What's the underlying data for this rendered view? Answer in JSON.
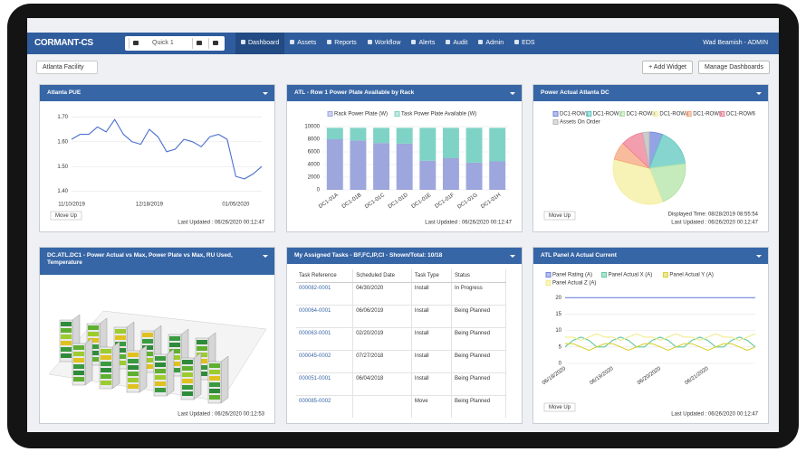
{
  "nav": {
    "brand": "CORMANT-CS",
    "search": "Quick 1",
    "menu": [
      "Dashboard",
      "Assets",
      "Reports",
      "Workflow",
      "Alerts",
      "Audit",
      "Admin",
      "EDS"
    ],
    "user": "Wad Beamish - ADMIN"
  },
  "toolbar": {
    "facility": "Atlanta Facility",
    "buttons": [
      "+ Add Widget",
      "Manage Dashboards"
    ]
  },
  "widgets": [
    {
      "title": "Atlanta PUE",
      "footer": {
        "move_up": "Move Up",
        "updated": "Last Updated : 06/26/2020 00:12:47"
      },
      "chart": {
        "type": "line",
        "categories": [
          "11/10/2019",
          null,
          null,
          null,
          null,
          null,
          null,
          null,
          null,
          "12/18/2019",
          null,
          null,
          null,
          null,
          null,
          null,
          null,
          null,
          null,
          "01/05/2020",
          null,
          null,
          null
        ],
        "series": [
          {
            "color": "#4a6fd0",
            "values": [
              1.61,
              1.63,
              1.63,
              1.66,
              1.64,
              1.69,
              1.63,
              1.6,
              1.59,
              1.65,
              1.62,
              1.56,
              1.57,
              1.61,
              1.6,
              1.58,
              1.62,
              1.63,
              1.61,
              1.46,
              1.45,
              1.47,
              1.5
            ]
          }
        ],
        "ylim": [
          1.38,
          1.72
        ],
        "yticks": [
          {
            "value": 1.4,
            "label": "1.40"
          },
          {
            "value": 1.5,
            "label": "1.50"
          },
          {
            "value": 1.6,
            "label": "1.60"
          },
          {
            "value": 1.7,
            "label": "1.70"
          }
        ]
      }
    },
    {
      "title": "ATL - Row 1 Power Plate Available by Rack",
      "footer": {
        "updated": "Last Updated : 06/26/2020 00:12:47"
      },
      "chart": {
        "type": "bar",
        "categories": [
          "DC1-01A",
          "DC1-01B",
          "DC1-01C",
          "DC1-01D",
          "DC1-01E",
          "DC1-01F",
          "DC1-01G",
          "DC1-01H"
        ],
        "series": [
          {
            "name": "Rack Power Plate (W)",
            "color": "#9ea6de",
            "values": [
              8000,
              7800,
              7400,
              7300,
              4600,
              5000,
              4300,
              4500
            ]
          },
          {
            "name": "Task Power Plate Available (W)",
            "color": "#7fd3c6",
            "values": [
              1800,
              2000,
              2400,
              2500,
              5200,
              4800,
              5500,
              5300
            ]
          }
        ],
        "ylim": [
          0,
          10000
        ],
        "yticks": [
          0,
          2000,
          4000,
          6000,
          8000,
          10000
        ]
      }
    },
    {
      "title": "Power Actual Atlanta DC",
      "footer": {
        "move_up": "Move Up",
        "displayed": "Displayed Time: 08/28/2019 08:55:54",
        "updated": "Last Updated : 06/26/2020 00:12:47"
      },
      "chart": {
        "type": "pie",
        "categories": [
          "DC1-ROW1",
          "DC1-ROW2",
          "DC1-ROW3",
          "DC1-ROW4",
          "DC1-ROW5",
          "DC1-ROW6",
          "Assets On Order"
        ],
        "values": [
          6,
          17,
          21,
          35,
          8,
          10,
          3
        ],
        "colors": [
          "#6f84dc",
          "#5ec8bf",
          "#b2e3a6",
          "#f4ee9c",
          "#f5a57c",
          "#ef7d93",
          "#b9b9b9"
        ]
      }
    },
    {
      "title": "DC.ATL.DC1 - Power Actual vs Max, Power Plate vs Max, RU Used, Temperature",
      "footer": {
        "updated": "Last Updated : 06/26/2020 00:12:53"
      },
      "chart": {
        "type": "image"
      }
    },
    {
      "title": "My Assigned Tasks - BF,FC,IP,CI - Shown/Total: 10/18",
      "table": {
        "columns": [
          "Task Reference",
          "Scheduled Date",
          "Task Type",
          "Status"
        ],
        "rows": [
          [
            "000082-0001",
            "04/30/2020",
            "Install",
            "In Progress"
          ],
          [
            "000064-0001",
            "06/06/2019",
            "Install",
            "Being Planned"
          ],
          [
            "000063-0001",
            "02/20/2019",
            "Install",
            "Being Planned"
          ],
          [
            "000045-0002",
            "07/27/2018",
            "Install",
            "Being Planned"
          ],
          [
            "000051-0001",
            "06/04/2018",
            "Install",
            "Being Planned"
          ],
          [
            "000085-0002",
            null,
            "Move",
            "Being Planned"
          ]
        ]
      }
    },
    {
      "title": "ATL Panel A Actual Current",
      "footer": {
        "move_up": "Move Up",
        "updated": "Last Updated : 06/26/2020 00:12:47"
      },
      "chart": {
        "type": "line",
        "categories": [
          "06/18/2020",
          null,
          null,
          null,
          null,
          null,
          "06/19/2020",
          null,
          null,
          null,
          null,
          null,
          "06/20/2020",
          null,
          null,
          null,
          null,
          null,
          "06/21/2020",
          null,
          null,
          null,
          null,
          null,
          null
        ],
        "series": [
          {
            "name": "Panel Rating (A)",
            "color": "#6f84dc",
            "values": [
              20,
              20,
              20,
              20,
              20,
              20,
              20,
              20,
              20,
              20,
              20,
              20,
              20,
              20,
              20,
              20,
              20,
              20,
              20,
              20,
              20,
              20,
              20,
              20,
              20
            ]
          },
          {
            "name": "Panel Actual X (A)",
            "color": "#5ec8a0",
            "values": [
              5,
              7,
              8,
              7,
              5,
              5,
              7,
              8,
              7,
              5,
              5,
              7,
              8,
              7,
              5,
              5,
              7,
              8,
              7,
              5,
              5,
              7,
              8,
              7,
              5
            ]
          },
          {
            "name": "Panel Actual Y (A)",
            "color": "#d9d23a",
            "values": [
              6,
              6,
              5,
              4,
              5,
              6,
              6,
              5,
              4,
              5,
              6,
              6,
              5,
              4,
              5,
              6,
              6,
              5,
              4,
              5,
              6,
              6,
              5,
              4,
              5
            ]
          },
          {
            "name": "Panel Actual Z (A)",
            "color": "#f2ec8a",
            "values": [
              8,
              8,
              7,
              8,
              9,
              8,
              8,
              7,
              8,
              9,
              8,
              8,
              7,
              8,
              9,
              8,
              8,
              7,
              8,
              9,
              8,
              8,
              7,
              8,
              9
            ]
          }
        ],
        "ylim": [
          0,
          22
        ],
        "yticks": [
          0,
          5,
          10,
          15,
          20
        ]
      }
    }
  ]
}
